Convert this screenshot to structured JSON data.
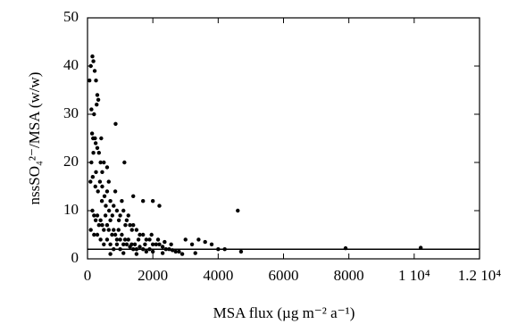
{
  "chart_data": {
    "type": "scatter",
    "x_label": "MSA flux  (µg m⁻² a⁻¹)",
    "y_label": "nssSO₄²⁻/MSA (w/w)",
    "x": [
      60,
      100,
      150,
      180,
      220,
      260,
      300,
      330,
      280,
      200,
      120,
      140,
      170,
      230,
      250,
      300,
      350,
      400,
      420,
      500,
      600,
      860,
      1130,
      90,
      160,
      240,
      320,
      380,
      450,
      520,
      600,
      700,
      800,
      900,
      1000,
      1100,
      1200,
      1300,
      1400,
      1500,
      1600,
      1700,
      1800,
      1900,
      2000,
      2100,
      2200,
      2300,
      2400,
      2500,
      2600,
      2700,
      2800,
      3000,
      3200,
      3400,
      3600,
      3800,
      4000,
      4200,
      4600,
      4700,
      2000,
      2200,
      1700,
      1400,
      150,
      200,
      250,
      300,
      350,
      400,
      450,
      500,
      550,
      600,
      650,
      700,
      750,
      800,
      850,
      900,
      950,
      1000,
      1050,
      1100,
      1150,
      1200,
      1250,
      1300,
      1350,
      1400,
      1450,
      1500,
      1600,
      1700,
      1800,
      1900,
      2000,
      500,
      600,
      700,
      800,
      900,
      1000,
      300,
      400,
      100,
      200,
      7900,
      10200,
      700,
      1100,
      1500,
      2300,
      2900,
      3300,
      120,
      180,
      260,
      440,
      560,
      660,
      760,
      960,
      1160,
      1360,
      1560,
      1760,
      1960,
      2160,
      2360,
      2560,
      1250,
      1050,
      850,
      650,
      450
    ],
    "values": [
      37,
      40,
      42,
      41,
      39,
      37,
      34,
      33,
      32,
      30,
      31,
      26,
      25,
      25,
      24,
      23,
      22,
      20,
      25,
      20,
      19,
      28,
      20,
      16,
      17,
      15,
      14,
      16,
      15,
      13,
      14,
      12,
      11,
      10,
      9,
      10,
      8,
      7,
      7,
      6,
      5,
      5,
      4,
      4,
      3,
      3,
      3,
      2.5,
      2,
      2,
      1.8,
      1.5,
      1.5,
      4,
      3,
      4,
      3.5,
      3,
      2,
      2,
      10,
      1.5,
      12,
      11,
      12,
      13,
      10,
      9,
      8,
      9,
      7,
      8,
      7,
      6,
      9,
      7,
      6,
      8,
      5,
      6,
      5,
      4,
      6,
      4,
      5,
      3,
      4,
      3,
      4,
      2.5,
      3,
      2,
      3,
      2,
      2.5,
      2,
      1.5,
      2,
      1.5,
      3,
      4,
      3,
      2,
      3,
      2,
      5,
      4,
      6,
      5,
      2.2,
      2.3,
      1,
      1.2,
      1,
      1.2,
      1,
      1.2,
      20,
      22,
      18,
      12,
      11,
      10,
      9,
      8,
      7,
      6,
      4,
      3,
      5,
      4,
      3.5,
      3,
      9,
      12,
      14,
      16,
      18
    ],
    "color": "#000000",
    "reference_line": 2,
    "xlim": [
      0,
      12000
    ],
    "ylim": [
      0,
      50
    ],
    "xticks": [
      0,
      2000,
      4000,
      6000,
      8000,
      {
        "value": 10000,
        "label": "1 10⁴"
      },
      {
        "value": 12000,
        "label": "1.2 10⁴"
      }
    ],
    "yticks": [
      0,
      10,
      20,
      30,
      40,
      50
    ]
  }
}
